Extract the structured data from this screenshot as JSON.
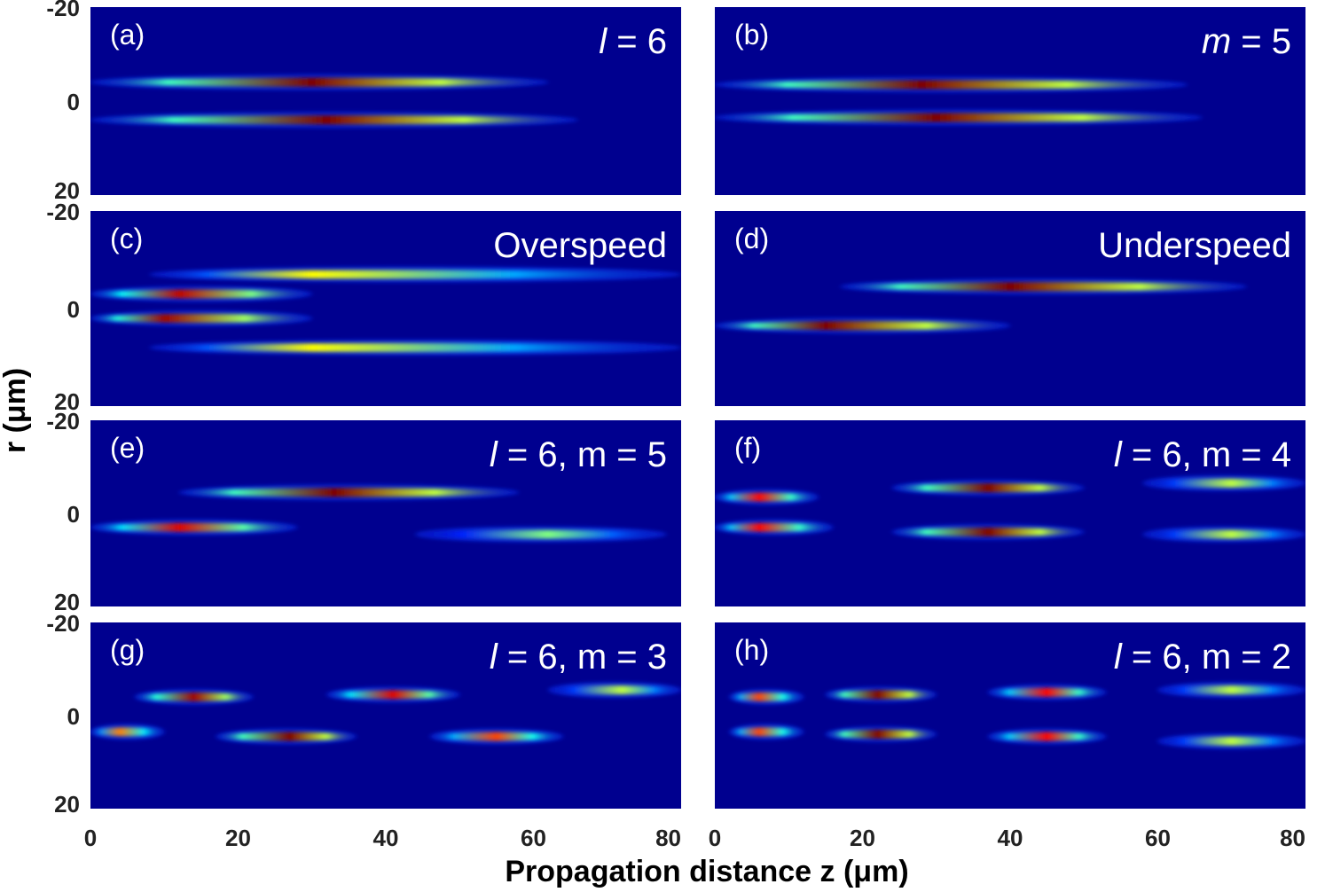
{
  "chart_data": {
    "type": "heatmap",
    "colormap": "jet",
    "xlabel": "Propagation distance z (μm)",
    "ylabel": "r (μm)",
    "x_range": [
      0,
      80
    ],
    "y_range": [
      -20,
      20
    ],
    "x_ticks": [
      "0",
      "20",
      "40",
      "60",
      "80"
    ],
    "y_ticks": [
      "-20",
      "0",
      "20"
    ],
    "grid": false,
    "panels": [
      {
        "label": "(a)",
        "title_var": "l",
        "title_rest": " = 6",
        "beams": [
          {
            "r": -4.0,
            "z0": 0,
            "z1": 62,
            "peak": 1.0,
            "zpeak": 30
          },
          {
            "r": 4.0,
            "z0": 0,
            "z1": 66,
            "peak": 1.0,
            "zpeak": 32
          }
        ]
      },
      {
        "label": "(b)",
        "title_var": "m",
        "title_rest": " = 5",
        "beams": [
          {
            "r": -3.5,
            "z0": 0,
            "z1": 64,
            "peak": 1.0,
            "zpeak": 28
          },
          {
            "r": 3.5,
            "z0": 0,
            "z1": 66,
            "peak": 1.0,
            "zpeak": 30
          }
        ]
      },
      {
        "label": "(c)",
        "title_var": "",
        "title_rest": "Overspeed",
        "beams": [
          {
            "r": -3.0,
            "z0": 0,
            "z1": 30,
            "peak": 0.9,
            "zpeak": 12
          },
          {
            "r": 2.0,
            "z0": 0,
            "z1": 30,
            "peak": 0.95,
            "zpeak": 10
          },
          {
            "r": -7.0,
            "z0": 8,
            "z1": 80,
            "peak": 0.6,
            "zpeak": 30
          },
          {
            "r": 8.0,
            "z0": 8,
            "z1": 80,
            "peak": 0.6,
            "zpeak": 30
          }
        ]
      },
      {
        "label": "(d)",
        "title_var": "",
        "title_rest": "Underspeed",
        "beams": [
          {
            "r": -4.5,
            "z0": 17,
            "z1": 72,
            "peak": 1.0,
            "zpeak": 40
          },
          {
            "r": 3.5,
            "z0": 0,
            "z1": 40,
            "peak": 1.0,
            "zpeak": 15
          }
        ]
      },
      {
        "label": "(e)",
        "title_var": "l",
        "title_rest": " = 6, m = 5",
        "beams": [
          {
            "r": -4.5,
            "z0": 12,
            "z1": 58,
            "peak": 1.0,
            "zpeak": 33
          },
          {
            "r": 3.0,
            "z0": 0,
            "z1": 28,
            "peak": 0.85,
            "zpeak": 12
          },
          {
            "r": 4.5,
            "z0": 44,
            "z1": 78,
            "peak": 0.5,
            "zpeak": 62
          }
        ]
      },
      {
        "label": "(f)",
        "title_var": "l",
        "title_rest": " = 6, m = 4",
        "beams": [
          {
            "r": -3.5,
            "z0": 0,
            "z1": 14,
            "peak": 0.8,
            "zpeak": 6
          },
          {
            "r": 3.0,
            "z0": 0,
            "z1": 16,
            "peak": 0.8,
            "zpeak": 6
          },
          {
            "r": -5.5,
            "z0": 24,
            "z1": 50,
            "peak": 1.0,
            "zpeak": 37
          },
          {
            "r": 4.0,
            "z0": 24,
            "z1": 50,
            "peak": 1.0,
            "zpeak": 37
          },
          {
            "r": -6.5,
            "z0": 58,
            "z1": 80,
            "peak": 0.55,
            "zpeak": 70
          },
          {
            "r": 4.5,
            "z0": 58,
            "z1": 80,
            "peak": 0.55,
            "zpeak": 70
          }
        ]
      },
      {
        "label": "(g)",
        "title_var": "l",
        "title_rest": " = 6, m = 3",
        "beams": [
          {
            "r": -4.0,
            "z0": 6,
            "z1": 22,
            "peak": 0.95,
            "zpeak": 14
          },
          {
            "r": 3.5,
            "z0": 0,
            "z1": 10,
            "peak": 0.7,
            "zpeak": 4
          },
          {
            "r": 4.5,
            "z0": 17,
            "z1": 36,
            "peak": 1.0,
            "zpeak": 27
          },
          {
            "r": -4.5,
            "z0": 32,
            "z1": 50,
            "peak": 0.85,
            "zpeak": 41
          },
          {
            "r": 4.5,
            "z0": 46,
            "z1": 64,
            "peak": 0.75,
            "zpeak": 55
          },
          {
            "r": -5.5,
            "z0": 62,
            "z1": 80,
            "peak": 0.55,
            "zpeak": 72
          }
        ]
      },
      {
        "label": "(h)",
        "title_var": "l",
        "title_rest": " = 6, m = 2",
        "beams": [
          {
            "r": -4.0,
            "z0": 2,
            "z1": 12,
            "peak": 0.75,
            "zpeak": 6
          },
          {
            "r": 3.5,
            "z0": 2,
            "z1": 12,
            "peak": 0.75,
            "zpeak": 6
          },
          {
            "r": -4.5,
            "z0": 15,
            "z1": 30,
            "peak": 1.0,
            "zpeak": 22
          },
          {
            "r": 4.0,
            "z0": 15,
            "z1": 30,
            "peak": 1.0,
            "zpeak": 22
          },
          {
            "r": -5.0,
            "z0": 37,
            "z1": 53,
            "peak": 0.8,
            "zpeak": 45
          },
          {
            "r": 4.5,
            "z0": 37,
            "z1": 53,
            "peak": 0.8,
            "zpeak": 45
          },
          {
            "r": -5.5,
            "z0": 60,
            "z1": 80,
            "peak": 0.55,
            "zpeak": 70
          },
          {
            "r": 5.5,
            "z0": 60,
            "z1": 80,
            "peak": 0.55,
            "zpeak": 70
          }
        ]
      }
    ]
  },
  "colors": {
    "background": "#00008f",
    "colormap_stops": [
      "#00008f",
      "#0000ff",
      "#00ffff",
      "#ffff00",
      "#ff0000",
      "#800000"
    ]
  }
}
